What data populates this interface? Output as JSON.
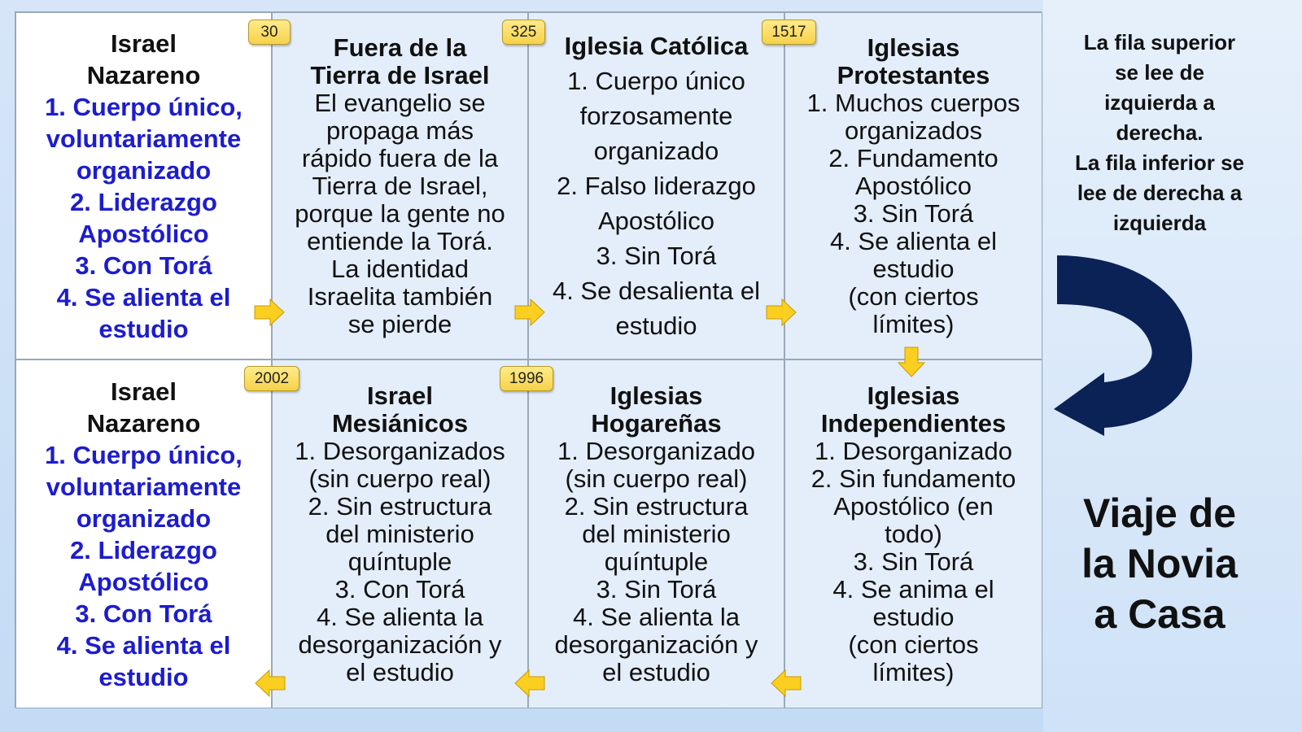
{
  "top_row": [
    {
      "title": [
        "Israel",
        "Nazareno"
      ],
      "lines": [
        "1. Cuerpo único,",
        "voluntariamente",
        "organizado",
        "2. Liderazgo",
        "Apostólico",
        "3. Con Torá",
        "4. Se alienta el",
        "estudio"
      ]
    },
    {
      "title": [
        "Fuera de la",
        "Tierra de Israel"
      ],
      "lines": [
        "El evangelio se",
        "propaga más",
        "rápido fuera de la",
        "Tierra de Israel,",
        "porque la gente no",
        "entiende la Torá.",
        "La identidad",
        "Israelita también",
        "se pierde"
      ]
    },
    {
      "title": [
        "Iglesia Católica"
      ],
      "lines": [
        "1. Cuerpo único",
        "forzosamente",
        "organizado",
        "2. Falso liderazgo",
        "Apostólico",
        "3. Sin Torá",
        "4. Se desalienta el",
        "estudio"
      ]
    },
    {
      "title": [
        "Iglesias",
        "Protestantes"
      ],
      "lines": [
        "1. Muchos cuerpos",
        "organizados",
        "2. Fundamento",
        "Apostólico",
        "3. Sin Torá",
        "4. Se alienta el",
        "estudio",
        "(con ciertos",
        "límites)"
      ]
    }
  ],
  "bottom_row": [
    {
      "title": [
        "Israel",
        "Nazareno"
      ],
      "lines": [
        "1. Cuerpo único,",
        "voluntariamente",
        "organizado",
        "2. Liderazgo",
        "Apostólico",
        "3. Con Torá",
        "4. Se alienta el",
        "estudio"
      ]
    },
    {
      "title": [
        "Israel",
        "Mesiánicos"
      ],
      "lines": [
        "1. Desorganizados",
        "(sin cuerpo real)",
        "2. Sin estructura",
        "del ministerio",
        "quíntuple",
        "3. Con Torá",
        "4. Se alienta la",
        "desorganización y",
        "el estudio"
      ]
    },
    {
      "title": [
        "Iglesias",
        "Hogareñas"
      ],
      "lines": [
        "1. Desorganizado",
        "(sin cuerpo real)",
        "2. Sin estructura",
        "del ministerio",
        "quíntuple",
        "3. Sin Torá",
        "4. Se alienta la",
        "desorganización y",
        "el estudio"
      ]
    },
    {
      "title": [
        "Iglesias",
        "Independientes"
      ],
      "lines": [
        "1. Desorganizado",
        "2. Sin fundamento",
        "Apostólico (en",
        "todo)",
        "3. Sin Torá",
        "4. Se anima el",
        "estudio",
        "(con ciertos",
        "límites)"
      ]
    }
  ],
  "badges": [
    "30",
    "325",
    "1517",
    "2002",
    "1996"
  ],
  "note": [
    "La fila superior",
    "se lee de",
    "izquierda a",
    "derecha.",
    "La fila inferior se",
    "lee de derecha a",
    "izquierda"
  ],
  "title": [
    "Viaje de",
    "la Novia",
    "a Casa"
  ],
  "colors": {
    "accent_blue": "#1c1ccf",
    "arrow_navy": "#0a2255",
    "badge_yellow": "#f6d24a"
  }
}
